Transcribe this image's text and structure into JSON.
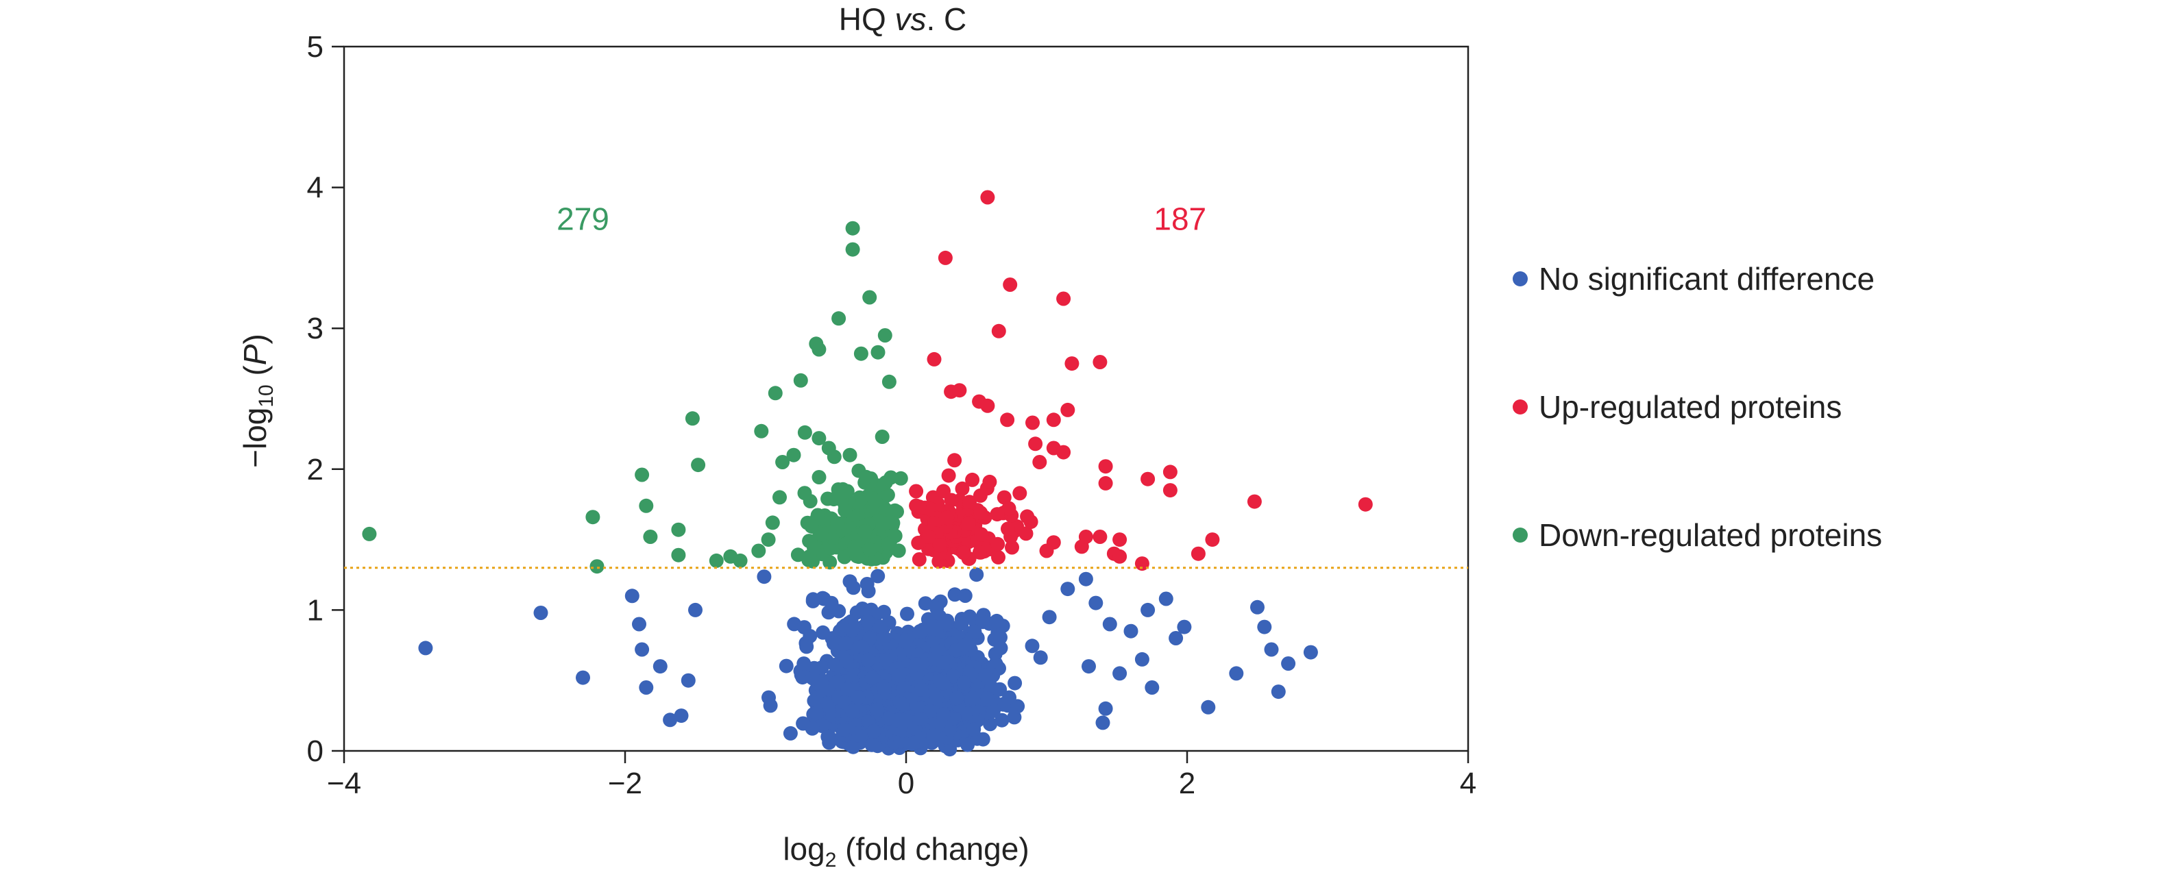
{
  "chart_data": {
    "type": "scatter",
    "title_main": "HQ ",
    "title_italic": "vs",
    "title_end": ". C",
    "xlabel_base": "log",
    "xlabel_sub": "2",
    "xlabel_rest": " (fold change)",
    "ylabel_pre": "−log",
    "ylabel_sub": "10",
    "ylabel_open": " (",
    "ylabel_italic": "P",
    "ylabel_close": ")",
    "xlim": [
      -4,
      4
    ],
    "ylim": [
      0,
      5
    ],
    "xticks": [
      -4,
      -2,
      0,
      2,
      4
    ],
    "xtick_labels": [
      "−4",
      "−2",
      "0",
      "2",
      "4"
    ],
    "yticks": [
      0,
      1,
      2,
      3,
      4,
      5
    ],
    "ytick_labels": [
      "0",
      "1",
      "2",
      "3",
      "4",
      "5"
    ],
    "threshold_y": 1.3,
    "threshold_color": "#e8a317",
    "grid": false,
    "legend_position": "right",
    "annotations": [
      {
        "text": "279",
        "x": -2.3,
        "y": 3.7,
        "color": "#3a9a63"
      },
      {
        "text": "187",
        "x": 1.95,
        "y": 3.7,
        "color": "#e8213f"
      }
    ],
    "series": [
      {
        "name": "No significant difference",
        "color": "#3a63b8",
        "approx_count": 1600,
        "points": [
          [
            -3.42,
            0.73
          ],
          [
            -2.6,
            0.98
          ],
          [
            -2.3,
            0.52
          ],
          [
            -1.95,
            1.1
          ],
          [
            -1.9,
            0.9
          ],
          [
            -1.88,
            0.72
          ],
          [
            -1.85,
            0.45
          ],
          [
            -1.75,
            0.6
          ],
          [
            -1.68,
            0.22
          ],
          [
            -1.6,
            0.25
          ],
          [
            -1.55,
            0.5
          ],
          [
            -1.5,
            1.0
          ],
          [
            2.35,
            0.55
          ],
          [
            2.5,
            1.02
          ],
          [
            2.55,
            0.88
          ],
          [
            2.6,
            0.72
          ],
          [
            2.65,
            0.42
          ],
          [
            2.72,
            0.62
          ],
          [
            2.88,
            0.7
          ],
          [
            2.15,
            0.31
          ],
          [
            1.98,
            0.88
          ],
          [
            1.92,
            0.8
          ],
          [
            1.85,
            1.08
          ],
          [
            1.72,
            1.0
          ],
          [
            1.68,
            0.65
          ],
          [
            1.75,
            0.45
          ],
          [
            1.6,
            0.85
          ],
          [
            1.52,
            0.55
          ],
          [
            1.45,
            0.9
          ],
          [
            1.42,
            0.3
          ],
          [
            1.4,
            0.2
          ],
          [
            1.35,
            1.05
          ],
          [
            1.3,
            0.6
          ],
          [
            1.28,
            1.22
          ],
          [
            1.15,
            1.15
          ],
          [
            1.02,
            0.95
          ]
        ]
      },
      {
        "name": "Up-regulated proteins",
        "color": "#e8213f",
        "approx_count": 187,
        "points": [
          [
            0.58,
            3.93
          ],
          [
            0.28,
            3.5
          ],
          [
            0.74,
            3.31
          ],
          [
            1.12,
            3.21
          ],
          [
            0.66,
            2.98
          ],
          [
            0.2,
            2.78
          ],
          [
            1.18,
            2.75
          ],
          [
            1.38,
            2.76
          ],
          [
            0.32,
            2.55
          ],
          [
            0.38,
            2.56
          ],
          [
            0.52,
            2.48
          ],
          [
            0.58,
            2.45
          ],
          [
            0.72,
            2.35
          ],
          [
            0.9,
            2.33
          ],
          [
            1.15,
            2.42
          ],
          [
            1.05,
            2.35
          ],
          [
            1.05,
            2.15
          ],
          [
            1.12,
            2.12
          ],
          [
            0.92,
            2.18
          ],
          [
            0.95,
            2.05
          ],
          [
            1.42,
            2.02
          ],
          [
            1.42,
            1.9
          ],
          [
            1.88,
            1.98
          ],
          [
            1.72,
            1.93
          ],
          [
            1.88,
            1.85
          ],
          [
            2.48,
            1.77
          ],
          [
            3.27,
            1.75
          ],
          [
            2.18,
            1.5
          ],
          [
            2.08,
            1.4
          ],
          [
            1.52,
            1.5
          ],
          [
            1.48,
            1.4
          ],
          [
            1.68,
            1.33
          ],
          [
            1.52,
            1.38
          ],
          [
            1.25,
            1.45
          ],
          [
            1.38,
            1.52
          ],
          [
            1.28,
            1.52
          ],
          [
            1.05,
            1.48
          ],
          [
            1.0,
            1.42
          ]
        ]
      },
      {
        "name": "Down-regulated proteins",
        "color": "#3a9a63",
        "approx_count": 279,
        "points": [
          [
            -0.38,
            3.71
          ],
          [
            -0.38,
            3.56
          ],
          [
            -0.26,
            3.22
          ],
          [
            -0.48,
            3.07
          ],
          [
            -0.15,
            2.95
          ],
          [
            -0.64,
            2.89
          ],
          [
            -0.62,
            2.85
          ],
          [
            -0.2,
            2.83
          ],
          [
            -0.32,
            2.82
          ],
          [
            -0.75,
            2.63
          ],
          [
            -0.12,
            2.62
          ],
          [
            -0.93,
            2.54
          ],
          [
            -1.52,
            2.36
          ],
          [
            -1.48,
            2.03
          ],
          [
            -1.03,
            2.27
          ],
          [
            -1.88,
            1.96
          ],
          [
            -1.85,
            1.74
          ],
          [
            -2.23,
            1.66
          ],
          [
            -1.62,
            1.57
          ],
          [
            -1.82,
            1.52
          ],
          [
            -3.82,
            1.54
          ],
          [
            -2.2,
            1.31
          ],
          [
            -1.62,
            1.39
          ],
          [
            -1.35,
            1.35
          ],
          [
            -1.25,
            1.38
          ],
          [
            -1.18,
            1.35
          ],
          [
            -1.05,
            1.42
          ],
          [
            -0.98,
            1.5
          ],
          [
            -0.95,
            1.62
          ],
          [
            -0.9,
            1.8
          ],
          [
            -0.88,
            2.05
          ],
          [
            -0.8,
            2.1
          ],
          [
            -0.72,
            2.26
          ],
          [
            -0.62,
            2.22
          ],
          [
            -0.55,
            2.15
          ],
          [
            -0.4,
            2.1
          ]
        ]
      }
    ]
  },
  "legend": {
    "items": [
      {
        "label": "No significant difference",
        "color": "#3a63b8"
      },
      {
        "label": "Up-regulated proteins",
        "color": "#e8213f"
      },
      {
        "label": "Down-regulated proteins",
        "color": "#3a9a63"
      }
    ]
  }
}
